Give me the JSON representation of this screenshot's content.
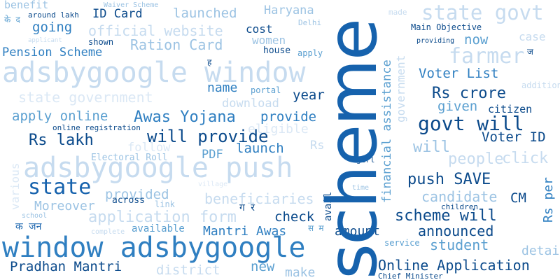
{
  "palette": {
    "darkest": "#0b4a8b",
    "dark": "#1662ad",
    "mid": "#2f7fc1",
    "medium": "#5a9fd0",
    "light": "#9cc3e3",
    "lighter": "#c6dbef",
    "faint": "#dbe8f5"
  },
  "words": [
    {
      "text": "benefit"
    },
    {
      "text": "Waiver Scheme"
    },
    {
      "text": "around lakh"
    },
    {
      "text": "ID Card"
    },
    {
      "text": "launched"
    },
    {
      "text": "Haryana"
    },
    {
      "text": "made"
    },
    {
      "text": "state govt"
    },
    {
      "text": "going"
    },
    {
      "text": "official website"
    },
    {
      "text": "cost"
    },
    {
      "text": "Delhi"
    },
    {
      "text": "Main Objective"
    },
    {
      "text": "case"
    },
    {
      "text": "applicant"
    },
    {
      "text": "shown"
    },
    {
      "text": "Ration Card"
    },
    {
      "text": "women"
    },
    {
      "text": "providing"
    },
    {
      "text": "now"
    },
    {
      "text": "Pension Scheme"
    },
    {
      "text": "house"
    },
    {
      "text": "apply"
    },
    {
      "text": "farmer"
    },
    {
      "text": "adsbygoogle window"
    },
    {
      "text": "Voter List"
    },
    {
      "text": "addition"
    },
    {
      "text": "name"
    },
    {
      "text": "portal"
    },
    {
      "text": "year"
    },
    {
      "text": "Rs crore"
    },
    {
      "text": "state government"
    },
    {
      "text": "download"
    },
    {
      "text": "given"
    },
    {
      "text": "citizen"
    },
    {
      "text": "apply online"
    },
    {
      "text": "Awas Yojana"
    },
    {
      "text": "provide"
    },
    {
      "text": "online registration"
    },
    {
      "text": "eligible"
    },
    {
      "text": "govt will"
    },
    {
      "text": "Rs lakh"
    },
    {
      "text": "will provide"
    },
    {
      "text": "Voter ID"
    },
    {
      "text": "follow"
    },
    {
      "text": "launch"
    },
    {
      "text": "Rs"
    },
    {
      "text": "will"
    },
    {
      "text": "click"
    },
    {
      "text": "people"
    },
    {
      "text": "PDF"
    },
    {
      "text": "Electoral Roll"
    },
    {
      "text": "girl"
    },
    {
      "text": "adsbygoogle push"
    },
    {
      "text": "state"
    },
    {
      "text": "village"
    },
    {
      "text": "push SAVE"
    },
    {
      "text": "time"
    },
    {
      "text": "provided"
    },
    {
      "text": "beneficiaries"
    },
    {
      "text": "candidate"
    },
    {
      "text": "CM"
    },
    {
      "text": "across"
    },
    {
      "text": "Moreover"
    },
    {
      "text": "link"
    },
    {
      "text": "children"
    },
    {
      "text": "school"
    },
    {
      "text": "application form"
    },
    {
      "text": "check"
    },
    {
      "text": "scheme will"
    },
    {
      "text": "complete"
    },
    {
      "text": "available"
    },
    {
      "text": "Mantri Awas"
    },
    {
      "text": "amount"
    },
    {
      "text": "announced"
    },
    {
      "text": "window adsbygoogle"
    },
    {
      "text": "service"
    },
    {
      "text": "student"
    },
    {
      "text": "detail"
    },
    {
      "text": "Pradhan Mantri"
    },
    {
      "text": "new"
    },
    {
      "text": "district"
    },
    {
      "text": "make"
    },
    {
      "text": "Online Application"
    },
    {
      "text": "Chief Minister"
    },
    {
      "text": "various"
    },
    {
      "text": "government"
    },
    {
      "text": "financial assistance"
    },
    {
      "text": "avail"
    },
    {
      "text": "Rs per"
    },
    {
      "text": "scheme"
    },
    {
      "text": "के द"
    },
    {
      "text": "ह"
    },
    {
      "text": "ज"
    },
    {
      "text": "ग र"
    },
    {
      "text": "क जन"
    },
    {
      "text": "स म"
    }
  ]
}
